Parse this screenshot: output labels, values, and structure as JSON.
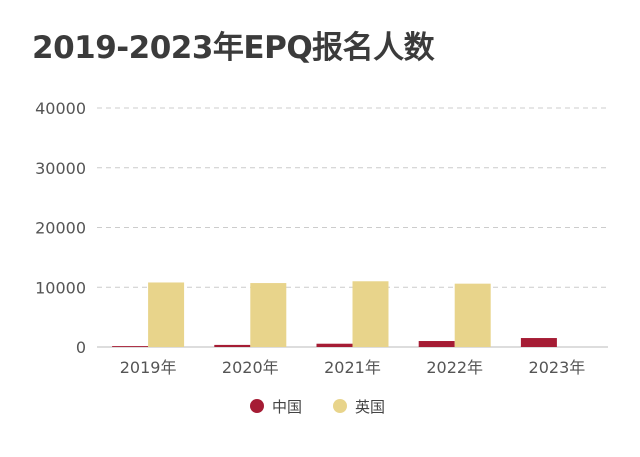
{
  "chart_data": {
    "type": "bar",
    "title": "2019-2023年EPQ报名人数",
    "categories": [
      "2019年",
      "2020年",
      "2021年",
      "2022年",
      "2023年"
    ],
    "series": [
      {
        "name": "中国",
        "color": "#a51c34",
        "values": [
          150,
          350,
          550,
          1000,
          1500
        ]
      },
      {
        "name": "英国",
        "color": "#e8d48b",
        "values": [
          10800,
          10700,
          11000,
          10600,
          0
        ]
      }
    ],
    "xlabel": "",
    "ylabel": "",
    "ylim": [
      0,
      40000
    ],
    "yticks": [
      0,
      10000,
      20000,
      30000,
      40000
    ],
    "grid": true,
    "legend": "bottom-center"
  }
}
